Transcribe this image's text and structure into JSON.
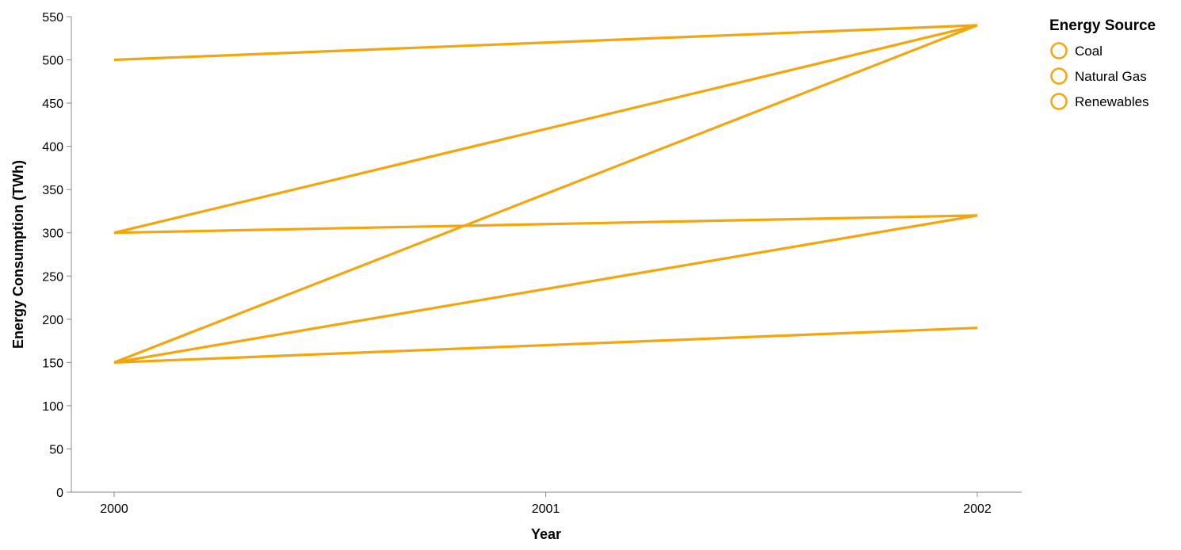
{
  "chart_data": {
    "type": "line",
    "xlabel": "Year",
    "ylabel": "Energy Consumption (TWh)",
    "x_ticks": [
      "2000",
      "2001",
      "2002"
    ],
    "y_ticks": [
      0,
      50,
      100,
      150,
      200,
      250,
      300,
      350,
      400,
      450,
      500,
      550
    ],
    "xlim": [
      2000,
      2002
    ],
    "ylim": [
      0,
      550
    ],
    "grid": false,
    "legend": {
      "title": "Energy Source",
      "position": "top-right"
    },
    "line_color": "#f5a50a",
    "series": [
      {
        "name": "Coal",
        "points": [
          [
            2000,
            500
          ],
          [
            2002,
            540
          ]
        ]
      },
      {
        "name": "Natural Gas",
        "points": [
          [
            2000,
            300
          ],
          [
            2002,
            320
          ]
        ]
      },
      {
        "name": "Renewables",
        "points": [
          [
            2000,
            150
          ],
          [
            2002,
            190
          ]
        ]
      }
    ],
    "path_order": [
      [
        2000,
        500
      ],
      [
        2002,
        540
      ],
      [
        2000,
        300
      ],
      [
        2002,
        320
      ],
      [
        2000,
        150
      ],
      [
        2002,
        320
      ],
      [
        2000,
        300
      ],
      [
        2002,
        540
      ],
      [
        2000,
        150
      ],
      [
        2002,
        190
      ]
    ]
  }
}
